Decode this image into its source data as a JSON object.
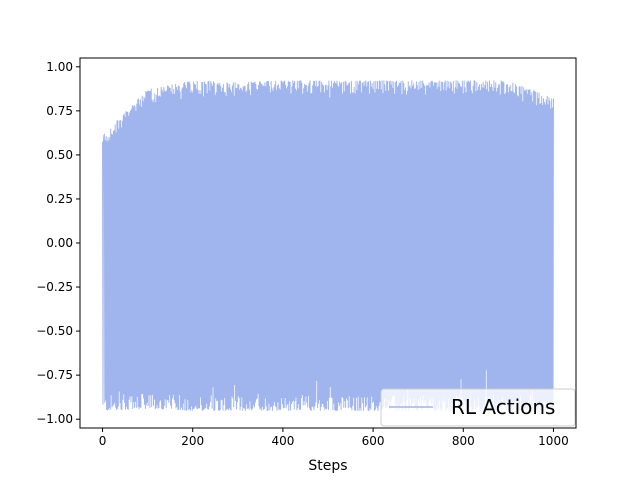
{
  "chart_data": {
    "type": "line",
    "title": "",
    "xlabel": "Steps",
    "ylabel": "",
    "xlim": [
      -50,
      1050
    ],
    "ylim": [
      -1.05,
      1.05
    ],
    "x_ticks": [
      0,
      200,
      400,
      600,
      800,
      1000
    ],
    "x_tick_labels": [
      "0",
      "200",
      "400",
      "600",
      "800",
      "1000"
    ],
    "y_ticks": [
      1.0,
      0.75,
      0.5,
      0.25,
      0.0,
      -0.25,
      -0.5,
      -0.75,
      -1.0
    ],
    "y_tick_labels": [
      "1.00",
      "0.75",
      "0.50",
      "0.25",
      "0.00",
      "−0.25",
      "−0.50",
      "−0.75",
      "−1.00"
    ],
    "grid": false,
    "legend_position": "lower-right",
    "series": [
      {
        "name": "RL Actions",
        "color": "#a0b4ee",
        "x_start": 0,
        "x_end": 1000,
        "num_points": 1001,
        "upper_envelope": [
          0.61,
          0.87,
          0.92,
          0.91,
          0.92,
          0.92,
          0.92,
          0.92,
          0.92,
          0.92,
          0.82
        ],
        "lower_envelope": [
          -0.95,
          -0.94,
          -0.95,
          -0.95,
          -0.95,
          -0.95,
          -0.95,
          -0.95,
          -0.95,
          -0.95,
          -0.95
        ],
        "envelope_x": [
          0,
          100,
          200,
          300,
          400,
          500,
          600,
          700,
          800,
          900,
          1000
        ],
        "notable_points": [
          {
            "x": 3,
            "y": 0.61
          },
          {
            "x": 475,
            "y": -0.78
          },
          {
            "x": 795,
            "y": -0.77
          },
          {
            "x": 851,
            "y": -0.72
          },
          {
            "x": 1000,
            "y": 0.82
          }
        ]
      }
    ]
  }
}
